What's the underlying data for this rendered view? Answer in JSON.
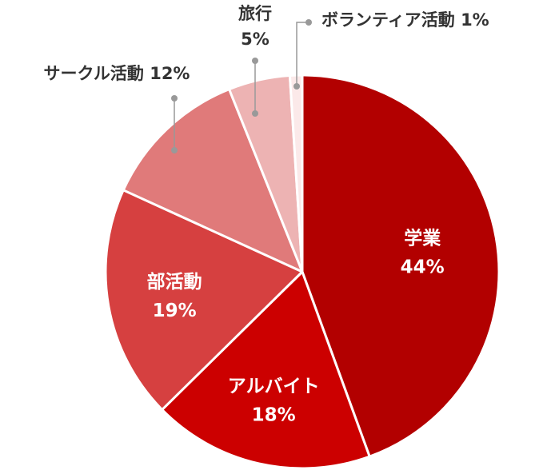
{
  "chart_data": {
    "type": "pie",
    "title": "",
    "slices": [
      {
        "label": "学業",
        "value": 44,
        "value_label": "44%",
        "color": "#b20000"
      },
      {
        "label": "アルバイト",
        "value": 18,
        "value_label": "18%",
        "color": "#cc0000"
      },
      {
        "label": "部活動",
        "value": 19,
        "value_label": "19%",
        "color": "#d64040"
      },
      {
        "label": "サークル活動",
        "value": 12,
        "value_label": "12%",
        "color": "#e07a7a"
      },
      {
        "label": "旅行",
        "value": 5,
        "value_label": "5%",
        "color": "#edb3b3"
      },
      {
        "label": "ボランティア活動",
        "value": 1,
        "value_label": "1%",
        "color": "#fbe9e9"
      }
    ],
    "start_angle": "12 o'clock",
    "direction": "clockwise",
    "legend": "none"
  }
}
